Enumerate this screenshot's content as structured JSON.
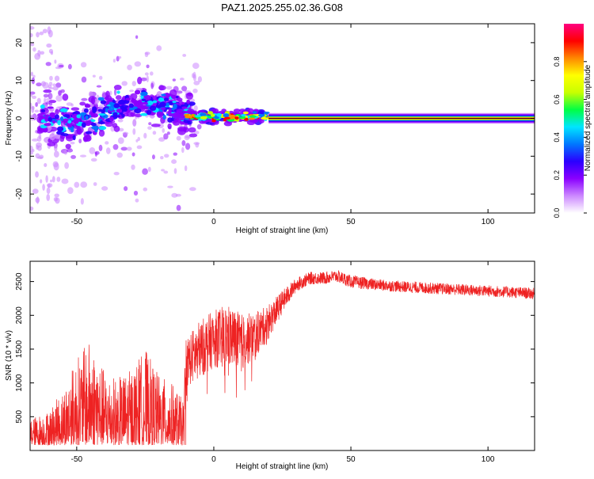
{
  "title": "PAZ1.2025.255.02.36.G08",
  "colors": {
    "snr_line": "#ee2222",
    "frame": "#000000"
  },
  "chart_data": [
    {
      "type": "heatmap",
      "name": "spectrogram",
      "xlabel": "Height of straight line (km)",
      "ylabel": "Frequency (Hz)",
      "xlim": [
        -67,
        117
      ],
      "ylim": [
        -25,
        25
      ],
      "xticks": [
        -50,
        0,
        50,
        100
      ],
      "yticks": [
        -20,
        -10,
        0,
        10,
        20
      ],
      "colorbar": {
        "label": "Normalized spectral amplitude",
        "range": [
          0,
          1
        ],
        "ticks": [
          "0.0",
          "0.2",
          "0.4",
          "0.6",
          "0.8"
        ],
        "colormap": [
          "#ffffff",
          "#cc88ff",
          "#8a00ff",
          "#2a00ff",
          "#0077ff",
          "#00e5ff",
          "#00ff44",
          "#c8ff00",
          "#ffff00",
          "#ff8800",
          "#ff0000",
          "#ff0080"
        ]
      },
      "features": {
        "noisy_region_km": [
          -67,
          -10
        ],
        "noisy_freq_spread_hz": [
          -5,
          8
        ],
        "converging_region_km": [
          -10,
          20
        ],
        "tone_start_km": 20,
        "tone_freq_hz": 0,
        "tone_peak_amplitude": 1.0
      }
    },
    {
      "type": "line",
      "name": "snr",
      "xlabel": "Height of straight line (km)",
      "ylabel": "SNR (10 * v/v)",
      "xlim": [
        -67,
        117
      ],
      "ylim": [
        0,
        2800
      ],
      "xticks": [
        -50,
        0,
        50,
        100
      ],
      "yticks": [
        500,
        1000,
        1500,
        2000,
        2500
      ],
      "series": [
        {
          "name": "SNR",
          "x": [
            -67,
            -60,
            -55,
            -50,
            -45,
            -40,
            -35,
            -30,
            -25,
            -20,
            -15,
            -11,
            -10,
            -5,
            0,
            5,
            10,
            15,
            20,
            25,
            30,
            35,
            40,
            45,
            50,
            60,
            70,
            80,
            90,
            100,
            110,
            117
          ],
          "mean": [
            180,
            220,
            350,
            550,
            650,
            450,
            380,
            420,
            550,
            380,
            320,
            250,
            1300,
            1500,
            1650,
            1700,
            1600,
            1700,
            1900,
            2200,
            2450,
            2550,
            2550,
            2580,
            2500,
            2450,
            2420,
            2400,
            2380,
            2360,
            2340,
            2320
          ],
          "spread": [
            120,
            180,
            280,
            450,
            550,
            400,
            380,
            450,
            550,
            420,
            380,
            250,
            450,
            500,
            500,
            550,
            500,
            400,
            300,
            200,
            120,
            110,
            110,
            110,
            110,
            100,
            100,
            100,
            100,
            100,
            100,
            100
          ]
        }
      ]
    }
  ]
}
